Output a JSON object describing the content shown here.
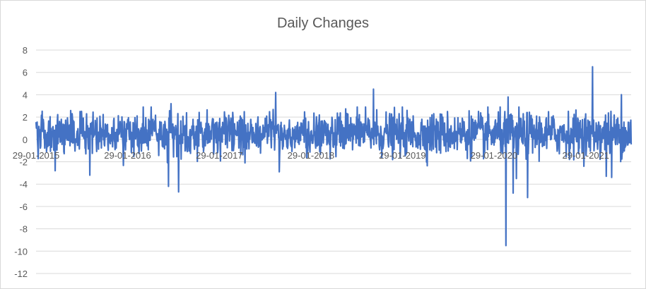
{
  "chart_data": {
    "type": "line",
    "title": "Daily Changes",
    "xlabel": "",
    "ylabel": "",
    "ylim": [
      -12,
      8
    ],
    "y_ticks": [
      8,
      6,
      4,
      2,
      0,
      -2,
      -4,
      -6,
      -8,
      -10,
      -12
    ],
    "x_tick_labels": [
      "29-01-2015",
      "29-01-2016",
      "29-01-2017",
      "29-01-2018",
      "29-01-2019",
      "29-01-2020",
      "29-01-2021"
    ],
    "x_range": [
      "29-01-2015",
      "29-07-2021"
    ],
    "grid": "horizontal",
    "legend": "none",
    "color": "#4472c4",
    "notable_points": [
      {
        "date": "2016-07-10",
        "value": -4.2
      },
      {
        "date": "2016-08-20",
        "value": -4.7
      },
      {
        "date": "2016-07-20",
        "value": 3.2
      },
      {
        "date": "2017-09-10",
        "value": 4.2
      },
      {
        "date": "2017-09-25",
        "value": -2.9
      },
      {
        "date": "2018-10-05",
        "value": 4.5
      },
      {
        "date": "2020-03-16",
        "value": -9.5
      },
      {
        "date": "2020-03-25",
        "value": 3.8
      },
      {
        "date": "2020-04-15",
        "value": -4.8
      },
      {
        "date": "2020-06-11",
        "value": -5.2
      },
      {
        "date": "2020-04-28",
        "value": -3.5
      },
      {
        "date": "2021-02-25",
        "value": 6.5
      },
      {
        "date": "2021-05-12",
        "value": -3.4
      },
      {
        "date": "2021-06-20",
        "value": 4.0
      },
      {
        "date": "2021-04-20",
        "value": -3.3
      },
      {
        "date": "2015-04-15",
        "value": -2.8
      },
      {
        "date": "2015-09-01",
        "value": -3.2
      }
    ]
  }
}
